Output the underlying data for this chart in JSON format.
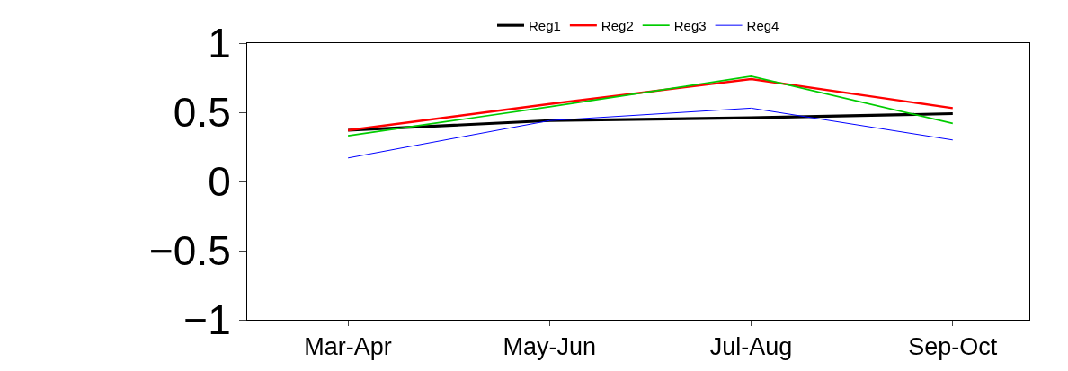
{
  "chart_data": {
    "type": "line",
    "categories": [
      "Mar-Apr",
      "May-Jun",
      "Jul-Aug",
      "Sep-Oct"
    ],
    "series": [
      {
        "name": "Reg1",
        "color": "#000000",
        "values": [
          0.37,
          0.44,
          0.46,
          0.49
        ]
      },
      {
        "name": "Reg2",
        "color": "#ff0000",
        "values": [
          0.37,
          0.56,
          0.74,
          0.53
        ]
      },
      {
        "name": "Reg3",
        "color": "#00cc00",
        "values": [
          0.33,
          0.54,
          0.76,
          0.42
        ]
      },
      {
        "name": "Reg4",
        "color": "#0000ff",
        "values": [
          0.17,
          0.44,
          0.53,
          0.3
        ]
      }
    ],
    "ylim": [
      -1,
      1
    ],
    "yticks": [
      -1,
      -0.5,
      0,
      0.5,
      1
    ],
    "legend": "top",
    "marker": "none",
    "line_style": "solid"
  }
}
